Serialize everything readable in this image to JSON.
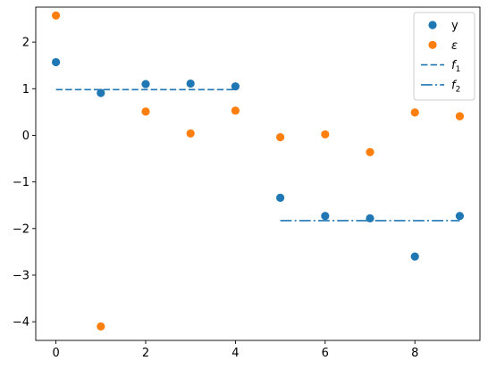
{
  "chart_data": {
    "type": "scatter",
    "title": "",
    "xlabel": "",
    "ylabel": "",
    "xlim": [
      -0.45,
      9.45
    ],
    "ylim": [
      -4.4,
      2.75
    ],
    "grid": false,
    "legend_position": "top-right",
    "x_ticks": [
      0,
      2,
      4,
      6,
      8
    ],
    "x_tick_labels": [
      "0",
      "2",
      "4",
      "6",
      "8"
    ],
    "y_ticks": [
      2,
      1,
      0,
      -1,
      -2,
      -3,
      -4
    ],
    "y_tick_labels": [
      "2",
      "1",
      "0",
      "−1",
      "−2",
      "−3",
      "−4"
    ],
    "series": [
      {
        "name": "y",
        "kind": "scatter",
        "color": "#1f77b4",
        "x": [
          0,
          1,
          2,
          3,
          4,
          5,
          6,
          7,
          8,
          9
        ],
        "y": [
          1.57,
          0.91,
          1.1,
          1.11,
          1.05,
          -1.34,
          -1.73,
          -1.78,
          -2.6,
          -1.73
        ]
      },
      {
        "name": "ε",
        "kind": "scatter",
        "color": "#ff7f0e",
        "x": [
          0,
          1,
          2,
          3,
          4,
          5,
          6,
          7,
          8,
          9
        ],
        "y": [
          2.57,
          -4.1,
          0.51,
          0.04,
          0.53,
          -0.04,
          0.02,
          -0.36,
          0.49,
          0.41
        ]
      },
      {
        "name": "f₁",
        "legend_base": "f",
        "legend_sub": "1",
        "kind": "line",
        "dash": "dashed",
        "color": "#1f77b4",
        "x": [
          0,
          4
        ],
        "y": [
          0.98,
          0.98
        ]
      },
      {
        "name": "f₂",
        "legend_base": "f",
        "legend_sub": "2",
        "kind": "line",
        "dash": "dashdot",
        "color": "#1f77b4",
        "x": [
          5,
          9
        ],
        "y": [
          -1.83,
          -1.83
        ]
      }
    ]
  }
}
